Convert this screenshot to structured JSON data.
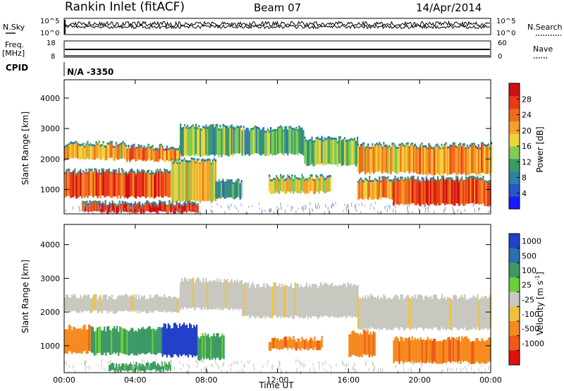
{
  "header": {
    "station": "Rankin Inlet (fitACF)",
    "beam": "Beam 07",
    "date": "14/Apr/2014"
  },
  "top_panels": {
    "nsky_label": "N.Sky",
    "nsky_ticks": [
      "10^5",
      "10^0"
    ],
    "nsearch_label": "N.Search",
    "nsearch_ticks": [
      "10^5",
      "10^0"
    ],
    "freq_label": "Freq.",
    "freq_unit": "[MHz]",
    "freq_ticks": [
      "18",
      "8"
    ],
    "nave_label": "Nave",
    "nave_ticks": [
      "60",
      "0"
    ],
    "cpid_label": "CPID",
    "cpid_value": "N/A -3350"
  },
  "chart_data": [
    {
      "type": "heatmap",
      "name": "power",
      "ylabel": "Slant Range [km]",
      "xlabel": "",
      "x_ticks": [
        "00:00",
        "04:00",
        "08:00",
        "12:00",
        "16:00",
        "20:00",
        "00:00"
      ],
      "y_ticks": [
        1000,
        2000,
        3000,
        4000
      ],
      "xlim_hours": [
        0,
        24
      ],
      "ylim_km": [
        200,
        4600
      ],
      "colorbar": {
        "label": "Power [dB]",
        "ticks": [
          4,
          8,
          12,
          16,
          20,
          24,
          28
        ],
        "range": [
          0,
          32
        ],
        "colors": [
          "#1a1aff",
          "#2a55c8",
          "#2f7fa8",
          "#3d9a66",
          "#7fcc55",
          "#f0d23c",
          "#f5a02a",
          "#f26a1e",
          "#e83a1a",
          "#d01010"
        ]
      },
      "bands": [
        {
          "t0": 0.0,
          "t1": 3.5,
          "r0": 2000,
          "r1": 2450,
          "level": 20
        },
        {
          "t0": 3.5,
          "t1": 6.5,
          "r0": 1950,
          "r1": 2350,
          "level": 22
        },
        {
          "t0": 6.5,
          "t1": 9.5,
          "r0": 2100,
          "r1": 3000,
          "level": 14
        },
        {
          "t0": 9.5,
          "t1": 13.5,
          "r0": 2150,
          "r1": 2950,
          "level": 12
        },
        {
          "t0": 13.5,
          "t1": 16.5,
          "r0": 1800,
          "r1": 2600,
          "level": 14
        },
        {
          "t0": 16.5,
          "t1": 20.0,
          "r0": 1550,
          "r1": 2400,
          "level": 20
        },
        {
          "t0": 20.0,
          "t1": 24.0,
          "r0": 1500,
          "r1": 2400,
          "level": 22
        },
        {
          "t0": 0.0,
          "t1": 6.0,
          "r0": 750,
          "r1": 1550,
          "level": 26
        },
        {
          "t0": 6.0,
          "t1": 8.5,
          "r0": 600,
          "r1": 1900,
          "level": 18
        },
        {
          "t0": 8.5,
          "t1": 10.0,
          "r0": 700,
          "r1": 1200,
          "level": 10
        },
        {
          "t0": 11.5,
          "t1": 15.0,
          "r0": 900,
          "r1": 1350,
          "level": 18
        },
        {
          "t0": 16.5,
          "t1": 18.5,
          "r0": 700,
          "r1": 1300,
          "level": 22
        },
        {
          "t0": 18.5,
          "t1": 24.0,
          "r0": 500,
          "r1": 1300,
          "level": 26
        },
        {
          "t0": 1.0,
          "t1": 7.5,
          "r0": 250,
          "r1": 500,
          "level": 28
        }
      ]
    },
    {
      "type": "heatmap",
      "name": "velocity",
      "ylabel": "Slant Range [km]",
      "xlabel": "Time UT",
      "x_ticks": [
        "00:00",
        "04:00",
        "08:00",
        "12:00",
        "16:00",
        "20:00",
        "00:00"
      ],
      "y_ticks": [
        1000,
        2000,
        3000,
        4000
      ],
      "xlim_hours": [
        0,
        24
      ],
      "ylim_km": [
        200,
        4600
      ],
      "colorbar": {
        "label": "Velocity [m s",
        "label_sup": "-1",
        "label_end": "]",
        "ticks": [
          "1000",
          "500",
          "100",
          "25",
          "-25",
          "-100",
          "-500",
          "-1000"
        ],
        "colors": [
          "#2340c8",
          "#2a6fb0",
          "#3d9a66",
          "#6ccf3a",
          "#c8c8c0",
          "#f0c23c",
          "#f58a1e",
          "#ee5a1a",
          "#e01010"
        ]
      },
      "bands": [
        {
          "t0": 0.0,
          "t1": 6.5,
          "r0": 2000,
          "r1": 2450,
          "cls": "gray"
        },
        {
          "t0": 6.5,
          "t1": 10.0,
          "r0": 2100,
          "r1": 2950,
          "cls": "gray"
        },
        {
          "t0": 10.0,
          "t1": 16.5,
          "r0": 1850,
          "r1": 2800,
          "cls": "gray"
        },
        {
          "t0": 16.5,
          "t1": 24.0,
          "r0": 1500,
          "r1": 2450,
          "cls": "gray"
        },
        {
          "t0": 0.0,
          "t1": 1.5,
          "r0": 800,
          "r1": 1550,
          "cls": "orange"
        },
        {
          "t0": 1.5,
          "t1": 5.5,
          "r0": 750,
          "r1": 1500,
          "cls": "green"
        },
        {
          "t0": 5.5,
          "t1": 7.5,
          "r0": 700,
          "r1": 1600,
          "cls": "blue"
        },
        {
          "t0": 7.5,
          "t1": 9.0,
          "r0": 600,
          "r1": 1300,
          "cls": "green"
        },
        {
          "t0": 11.5,
          "t1": 14.5,
          "r0": 900,
          "r1": 1200,
          "cls": "orange"
        },
        {
          "t0": 16.0,
          "t1": 17.5,
          "r0": 700,
          "r1": 1400,
          "cls": "orange"
        },
        {
          "t0": 18.5,
          "t1": 24.0,
          "r0": 500,
          "r1": 1200,
          "cls": "orange"
        },
        {
          "t0": 2.5,
          "t1": 6.0,
          "r0": 250,
          "r1": 450,
          "cls": "green"
        }
      ]
    }
  ]
}
